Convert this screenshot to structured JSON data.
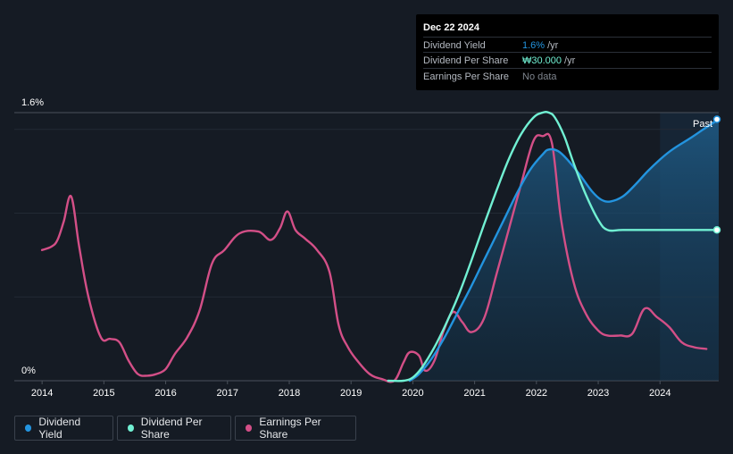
{
  "tooltip": {
    "date": "Dec 22 2024",
    "rows": [
      {
        "label": "Dividend Yield",
        "value": "1.6%",
        "unit": "/yr",
        "color": "#2394df"
      },
      {
        "label": "Dividend Per Share",
        "value": "₩30.000",
        "unit": "/yr",
        "color": "#71f0d3"
      },
      {
        "label": "Earnings Per Share",
        "value": "No data",
        "unit": "",
        "color": "#7f858e"
      }
    ]
  },
  "past_label": "Past",
  "legend": [
    {
      "label": "Dividend Yield",
      "color": "#2394df"
    },
    {
      "label": "Dividend Per Share",
      "color": "#71f0d3"
    },
    {
      "label": "Earnings Per Share",
      "color": "#d34f87"
    }
  ],
  "chart_data": {
    "type": "line",
    "title": "",
    "xlabel": "",
    "ylabel": "",
    "x_ticks": [
      "2014",
      "2015",
      "2016",
      "2017",
      "2018",
      "2019",
      "2020",
      "2021",
      "2022",
      "2023",
      "2024"
    ],
    "y_tick_labels": [
      "0%",
      "1.6%"
    ],
    "xlim": [
      2013.55,
      2024.95
    ],
    "ylim": [
      0,
      1.6
    ],
    "past_region_start": 2024.0,
    "series": [
      {
        "name": "Dividend Yield",
        "color": "#2394df",
        "fill": true,
        "x": [
          2019.95,
          2020.1,
          2020.3,
          2020.5,
          2020.7,
          2020.9,
          2021.1,
          2021.3,
          2021.5,
          2021.7,
          2021.9,
          2022.1,
          2022.2,
          2022.35,
          2022.5,
          2022.7,
          2022.9,
          2023.05,
          2023.2,
          2023.4,
          2023.6,
          2023.8,
          2024.0,
          2024.2,
          2024.5,
          2024.7,
          2024.95
        ],
        "y": [
          0.0,
          0.04,
          0.13,
          0.25,
          0.39,
          0.53,
          0.68,
          0.83,
          0.98,
          1.13,
          1.26,
          1.35,
          1.38,
          1.37,
          1.32,
          1.23,
          1.13,
          1.08,
          1.07,
          1.1,
          1.17,
          1.25,
          1.32,
          1.38,
          1.45,
          1.5,
          1.56
        ]
      },
      {
        "name": "Dividend Per Share",
        "color": "#71f0d3",
        "fill": false,
        "x": [
          2019.6,
          2019.85,
          2020.0,
          2020.15,
          2020.35,
          2020.55,
          2020.75,
          2020.95,
          2021.15,
          2021.35,
          2021.55,
          2021.75,
          2021.95,
          2022.1,
          2022.2,
          2022.3,
          2022.45,
          2022.6,
          2022.8,
          2023.0,
          2023.15,
          2023.4,
          2024.0,
          2024.95
        ],
        "y": [
          0.0,
          0.0,
          0.02,
          0.08,
          0.2,
          0.35,
          0.52,
          0.72,
          0.93,
          1.13,
          1.32,
          1.47,
          1.57,
          1.6,
          1.6,
          1.57,
          1.46,
          1.3,
          1.11,
          0.96,
          0.9,
          0.9,
          0.9,
          0.9
        ]
      },
      {
        "name": "Earnings Per Share",
        "color": "#d34f87",
        "fill": false,
        "x": [
          2014.0,
          2014.15,
          2014.25,
          2014.35,
          2014.47,
          2014.6,
          2014.75,
          2014.95,
          2015.1,
          2015.25,
          2015.4,
          2015.55,
          2015.7,
          2015.85,
          2016.0,
          2016.15,
          2016.35,
          2016.55,
          2016.75,
          2016.95,
          2017.2,
          2017.5,
          2017.7,
          2017.85,
          2017.97,
          2018.1,
          2018.25,
          2018.45,
          2018.65,
          2018.8,
          2018.95,
          2019.1,
          2019.3,
          2019.5,
          2019.7,
          2019.85,
          2019.95,
          2020.1,
          2020.2,
          2020.35,
          2020.5,
          2020.65,
          2020.8,
          2020.95,
          2021.15,
          2021.35,
          2021.55,
          2021.75,
          2021.95,
          2022.1,
          2022.25,
          2022.4,
          2022.6,
          2022.8,
          2023.0,
          2023.15,
          2023.35,
          2023.55,
          2023.75,
          2023.95,
          2024.15,
          2024.35,
          2024.55,
          2024.75
        ],
        "y": [
          0.78,
          0.8,
          0.84,
          0.95,
          1.1,
          0.8,
          0.5,
          0.26,
          0.25,
          0.23,
          0.12,
          0.04,
          0.03,
          0.04,
          0.07,
          0.16,
          0.26,
          0.42,
          0.7,
          0.78,
          0.88,
          0.89,
          0.84,
          0.91,
          1.01,
          0.9,
          0.85,
          0.78,
          0.65,
          0.33,
          0.2,
          0.12,
          0.04,
          0.01,
          0.0,
          0.11,
          0.17,
          0.15,
          0.06,
          0.12,
          0.3,
          0.41,
          0.35,
          0.29,
          0.37,
          0.63,
          0.9,
          1.17,
          1.43,
          1.46,
          1.42,
          0.96,
          0.59,
          0.4,
          0.3,
          0.27,
          0.27,
          0.28,
          0.43,
          0.38,
          0.32,
          0.23,
          0.2,
          0.19
        ]
      }
    ]
  }
}
